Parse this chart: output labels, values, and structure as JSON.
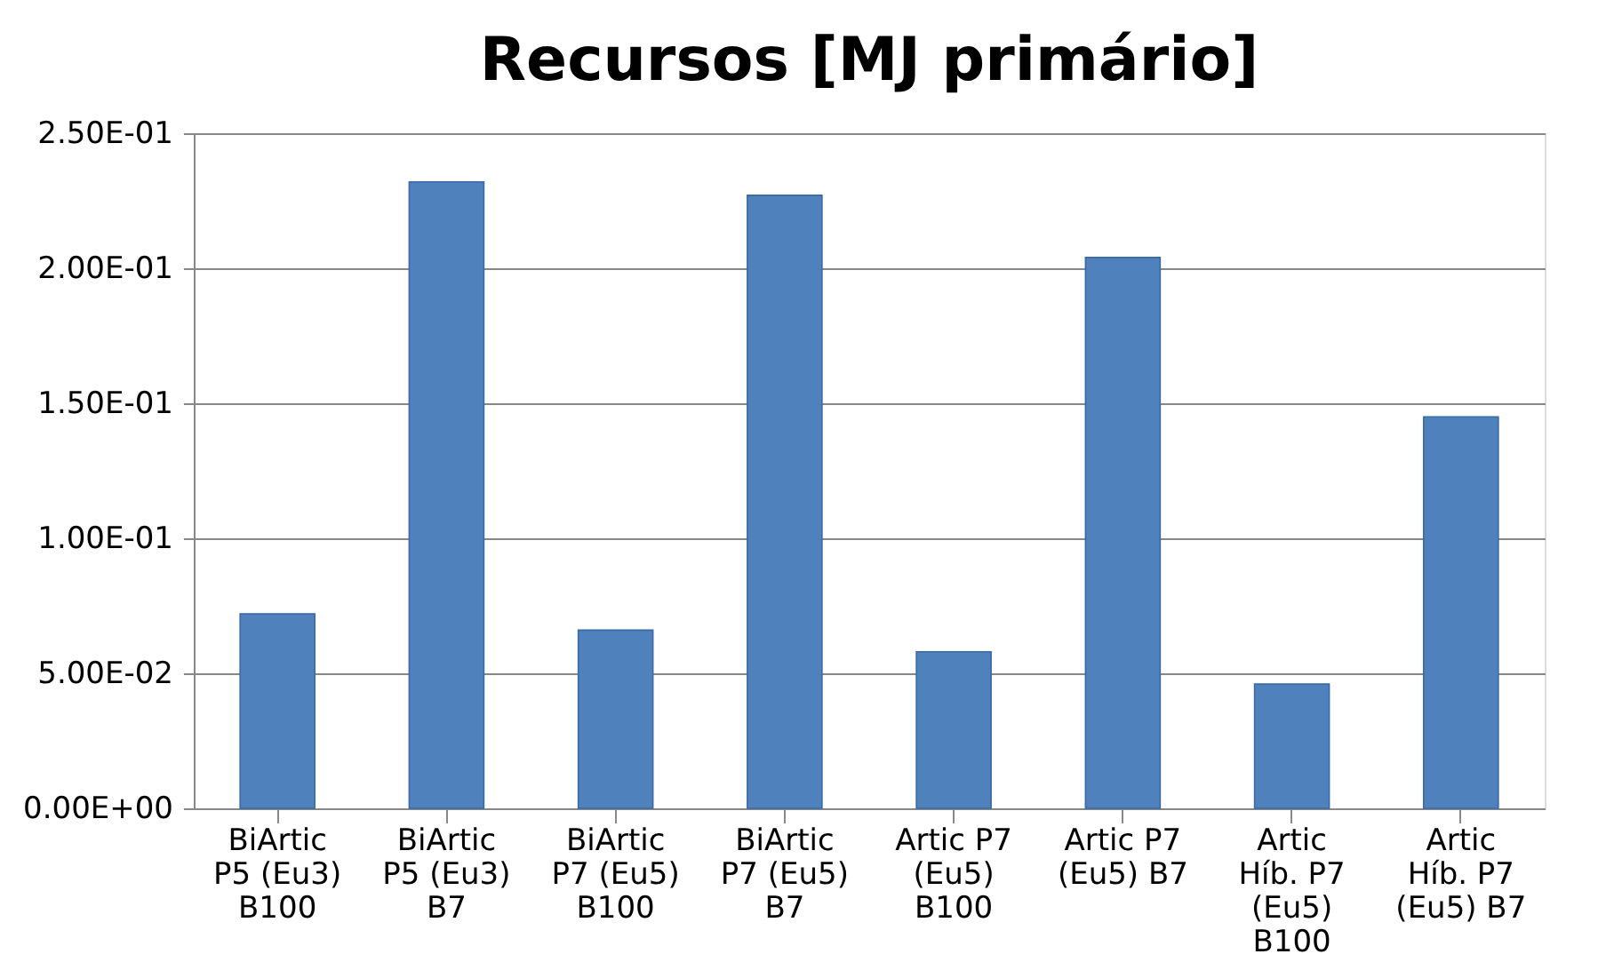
{
  "chart_data": {
    "type": "bar",
    "title": "Recursos [MJ primário]",
    "categories": [
      "BiArtic P5 (Eu3) B100",
      "BiArtic P5 (Eu3) B7",
      "BiArtic P7 (Eu5) B100",
      "BiArtic P7 (Eu5) B7",
      "Artic P7 (Eu5) B100",
      "Artic P7 (Eu5) B7",
      "Artic Híb. P7 (Eu5) B100",
      "Artic Híb. P7 (Eu5) B7"
    ],
    "values": [
      0.072,
      0.232,
      0.066,
      0.227,
      0.058,
      0.204,
      0.046,
      0.145
    ],
    "color": "#4f81bd",
    "ylim": [
      0,
      0.25
    ],
    "yticks": [
      {
        "value": 0,
        "label": "0.00E+00"
      },
      {
        "value": 0.05,
        "label": "5.00E-02"
      },
      {
        "value": 0.1,
        "label": "1.00E-01"
      },
      {
        "value": 0.15,
        "label": "1.50E-01"
      },
      {
        "value": 0.2,
        "label": "2.00E-01"
      },
      {
        "value": 0.25,
        "label": "2.50E-01"
      }
    ],
    "grid": "y"
  }
}
